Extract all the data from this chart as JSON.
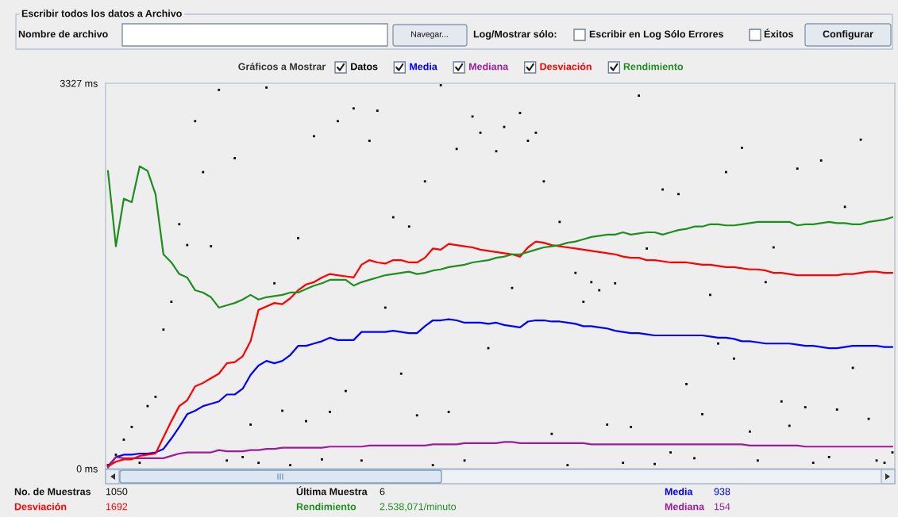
{
  "chart_data": {
    "type": "line",
    "categories": [
      null,
      null,
      null,
      null,
      null,
      null,
      null,
      null,
      null,
      null,
      null,
      null,
      null,
      null,
      null,
      null,
      null,
      null,
      null,
      null,
      null,
      null,
      null,
      null,
      null,
      null,
      null,
      null,
      null,
      null,
      null,
      null,
      null,
      null,
      null,
      null,
      null,
      null,
      null,
      null,
      null,
      null,
      null,
      null,
      null,
      null,
      null,
      null,
      null,
      null,
      null,
      null,
      null,
      null,
      null,
      null,
      null,
      null,
      null,
      null,
      null,
      null,
      null,
      null,
      null,
      null,
      null,
      null,
      null,
      null,
      null,
      null,
      null,
      null,
      null,
      null,
      null,
      null,
      null,
      null,
      null,
      null,
      null,
      null,
      null,
      null,
      null,
      null,
      null,
      null,
      null,
      null,
      null,
      null,
      null,
      null,
      null,
      null,
      null,
      null
    ],
    "series": [
      {
        "name": "Datos",
        "type": "scatter",
        "marker": "square",
        "color": "#000000",
        "values": [
          30,
          120,
          250,
          360,
          50,
          540,
          620,
          1200,
          1440,
          2110,
          1930,
          3000,
          2560,
          1920,
          3270,
          70,
          2680,
          100,
          380,
          50,
          3290,
          1600,
          500,
          30,
          1990,
          410,
          2870,
          80,
          490,
          3000,
          670,
          3110,
          70,
          2830,
          3090,
          1390,
          2170,
          820,
          2090,
          460,
          2480,
          30,
          3310,
          490,
          2760,
          70,
          3040,
          2900,
          1040,
          2740,
          2950,
          1560,
          3070,
          2830,
          2900,
          2480,
          300,
          2130,
          30,
          1690,
          1440,
          1610,
          1540,
          380,
          1600,
          50,
          360,
          3220,
          1900,
          40,
          2410,
          140,
          2370,
          730,
          90,
          470,
          1500,
          1080,
          2560,
          950,
          2770,
          320,
          70,
          1610,
          1910,
          580,
          370,
          2590,
          530,
          50,
          2660,
          100,
          510,
          2260,
          870,
          2840,
          430,
          70,
          50,
          140
        ]
      },
      {
        "name": "Media",
        "color": "#0000ff",
        "values": [
          20,
          100,
          120,
          120,
          130,
          130,
          140,
          170,
          260,
          360,
          470,
          500,
          540,
          560,
          580,
          640,
          640,
          690,
          810,
          890,
          930,
          910,
          930,
          980,
          1060,
          1060,
          1080,
          1100,
          1130,
          1110,
          1110,
          1110,
          1180,
          1180,
          1180,
          1180,
          1190,
          1180,
          1170,
          1170,
          1230,
          1280,
          1280,
          1290,
          1280,
          1260,
          1260,
          1260,
          1250,
          1260,
          1240,
          1230,
          1220,
          1270,
          1280,
          1280,
          1270,
          1270,
          1260,
          1250,
          1230,
          1230,
          1220,
          1210,
          1190,
          1180,
          1170,
          1170,
          1160,
          1150,
          1150,
          1150,
          1150,
          1150,
          1150,
          1150,
          1140,
          1130,
          1130,
          1120,
          1100,
          1100,
          1090,
          1080,
          1080,
          1080,
          1080,
          1070,
          1060,
          1060,
          1050,
          1040,
          1040,
          1050,
          1060,
          1060,
          1060,
          1060,
          1050,
          1050
        ]
      },
      {
        "name": "Mediana",
        "color": "#9c1c9c",
        "values": [
          10,
          100,
          90,
          90,
          90,
          90,
          90,
          90,
          110,
          130,
          140,
          140,
          140,
          140,
          160,
          150,
          150,
          150,
          160,
          160,
          170,
          170,
          180,
          180,
          180,
          180,
          180,
          180,
          190,
          190,
          190,
          190,
          190,
          200,
          200,
          200,
          200,
          200,
          200,
          200,
          200,
          210,
          210,
          210,
          210,
          220,
          220,
          220,
          220,
          220,
          230,
          230,
          220,
          220,
          220,
          220,
          220,
          220,
          220,
          220,
          220,
          210,
          210,
          210,
          210,
          210,
          210,
          210,
          210,
          210,
          210,
          210,
          210,
          210,
          210,
          210,
          210,
          210,
          210,
          210,
          210,
          200,
          200,
          200,
          200,
          200,
          200,
          200,
          190,
          190,
          190,
          190,
          190,
          190,
          190,
          190,
          190,
          190,
          190,
          190
        ]
      },
      {
        "name": "Desviación",
        "color": "#ff0000",
        "values": [
          20,
          60,
          80,
          80,
          110,
          120,
          130,
          270,
          410,
          540,
          590,
          710,
          740,
          780,
          820,
          910,
          920,
          970,
          1100,
          1370,
          1400,
          1430,
          1420,
          1470,
          1540,
          1590,
          1610,
          1650,
          1680,
          1670,
          1660,
          1650,
          1760,
          1800,
          1780,
          1770,
          1800,
          1800,
          1780,
          1780,
          1820,
          1900,
          1890,
          1940,
          1930,
          1920,
          1910,
          1890,
          1880,
          1870,
          1860,
          1850,
          1830,
          1910,
          1960,
          1950,
          1930,
          1920,
          1910,
          1900,
          1890,
          1880,
          1870,
          1860,
          1850,
          1830,
          1820,
          1820,
          1800,
          1800,
          1790,
          1780,
          1780,
          1780,
          1770,
          1760,
          1760,
          1750,
          1740,
          1740,
          1730,
          1720,
          1720,
          1710,
          1690,
          1690,
          1680,
          1670,
          1670,
          1670,
          1670,
          1670,
          1670,
          1680,
          1680,
          1690,
          1700,
          1700,
          1690,
          1690
        ]
      },
      {
        "name": "Rendimiento",
        "color": "#1e8f1e",
        "values": [
          2570,
          1920,
          2330,
          2300,
          2610,
          2570,
          2370,
          1850,
          1780,
          1680,
          1650,
          1540,
          1520,
          1480,
          1390,
          1410,
          1430,
          1460,
          1500,
          1460,
          1480,
          1490,
          1500,
          1520,
          1520,
          1550,
          1580,
          1600,
          1630,
          1630,
          1630,
          1580,
          1610,
          1630,
          1650,
          1670,
          1680,
          1690,
          1700,
          1680,
          1690,
          1710,
          1720,
          1740,
          1750,
          1760,
          1780,
          1790,
          1800,
          1820,
          1830,
          1850,
          1850,
          1870,
          1890,
          1910,
          1920,
          1930,
          1950,
          1960,
          1980,
          2000,
          2010,
          2020,
          2020,
          2040,
          2020,
          2030,
          2040,
          2040,
          2020,
          2040,
          2060,
          2070,
          2090,
          2090,
          2110,
          2110,
          2100,
          2100,
          2110,
          2120,
          2130,
          2130,
          2130,
          2130,
          2130,
          2100,
          2110,
          2110,
          2120,
          2130,
          2120,
          2120,
          2110,
          2110,
          2130,
          2140,
          2150,
          2170
        ]
      }
    ],
    "ylim": [
      0,
      3327
    ],
    "yticks": [
      {
        "value": 3327,
        "label": "3327 ms"
      },
      {
        "value": 0,
        "label": "0 ms"
      }
    ],
    "tick_labels": "y",
    "legend": "top",
    "legend_title": "Gráficos a Mostrar",
    "annotations": [
      "Escribir todos los datos a Archivo",
      "Nombre de archivo",
      "Navegar...",
      "Log/Mostrar sólo:",
      "Escribir en Log Sólo Errores",
      "Éxitos",
      "Configurar",
      "No. de Muestras",
      "1050",
      "Última Muestra",
      "6",
      "Media",
      "938",
      "Desviación",
      "1692",
      "Rendimiento",
      "2.538,071/minuto",
      "Mediana",
      "154"
    ]
  }
}
